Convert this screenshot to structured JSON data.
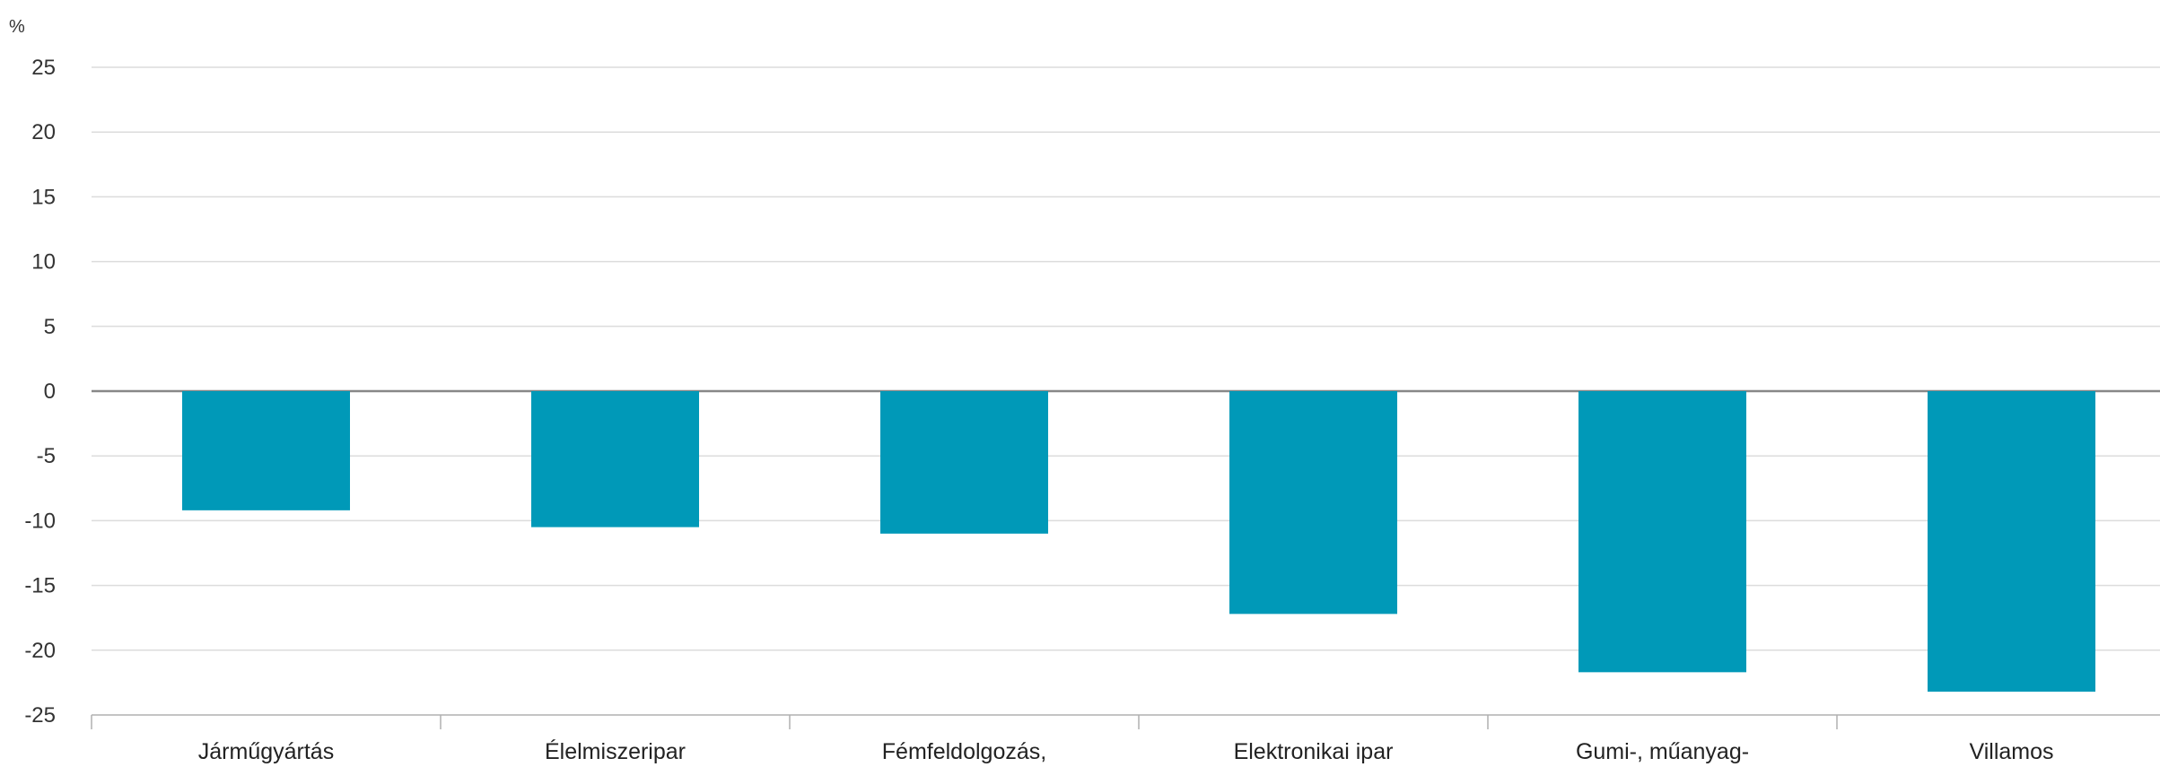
{
  "chart_data": {
    "type": "bar",
    "unit_label": "%",
    "categories": [
      "Járműgyártás",
      "Élelmiszeripar",
      "Fémfeldolgozás,",
      "Elektronikai ipar",
      "Gumi-, műanyag-",
      "Villamos"
    ],
    "values": [
      -9.2,
      -10.5,
      -11.0,
      -17.2,
      -21.7,
      -23.2
    ],
    "ylim": [
      -25,
      25
    ],
    "yticks": [
      25,
      20,
      15,
      10,
      5,
      0,
      -5,
      -10,
      -15,
      -20,
      -25
    ],
    "grid": true,
    "legend": "none",
    "colors": {
      "bar": "#0099b8",
      "grid": "#dcdcdc",
      "zero_line": "#888888",
      "axis": "#b0b0b0"
    }
  }
}
